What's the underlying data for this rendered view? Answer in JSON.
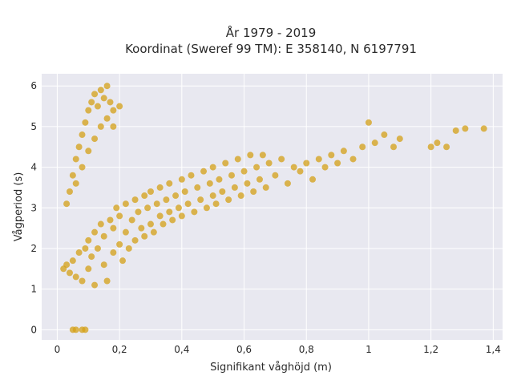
{
  "chart_data": {
    "type": "scatter",
    "title_line1": "År 1979 - 2019",
    "title_line2": "Koordinat (Sweref 99 TM): E 358140, N 6197791",
    "xlabel": "Signifikant våghöjd (m)",
    "ylabel": "Vågperiod (s)",
    "xlim": [
      -0.05,
      1.43
    ],
    "ylim": [
      -0.25,
      6.3
    ],
    "x_ticks": [
      0,
      0.2,
      0.4,
      0.6,
      0.8,
      1,
      1.2,
      1.4
    ],
    "x_tick_labels": [
      "0",
      "0,2",
      "0,4",
      "0,6",
      "0,8",
      "1",
      "1,2",
      "1,4"
    ],
    "y_ticks": [
      0,
      1,
      2,
      3,
      4,
      5,
      6
    ],
    "y_tick_labels": [
      "0",
      "1",
      "2",
      "3",
      "4",
      "5",
      "6"
    ],
    "grid": true,
    "colors": {
      "marker": "#D4A017",
      "plot_bg": "#E8E8F0",
      "grid": "#ffffff"
    },
    "series": [
      {
        "values_xy": [
          [
            0.02,
            1.5
          ],
          [
            0.03,
            1.6
          ],
          [
            0.04,
            1.4
          ],
          [
            0.05,
            1.7
          ],
          [
            0.06,
            1.3
          ],
          [
            0.07,
            1.9
          ],
          [
            0.08,
            1.2
          ],
          [
            0.09,
            2.0
          ],
          [
            0.1,
            1.5
          ],
          [
            0.1,
            2.2
          ],
          [
            0.11,
            1.8
          ],
          [
            0.12,
            2.4
          ],
          [
            0.12,
            1.1
          ],
          [
            0.13,
            2.0
          ],
          [
            0.14,
            2.6
          ],
          [
            0.15,
            1.6
          ],
          [
            0.15,
            2.3
          ],
          [
            0.16,
            1.2
          ],
          [
            0.17,
            2.7
          ],
          [
            0.18,
            1.9
          ],
          [
            0.18,
            2.5
          ],
          [
            0.19,
            3.0
          ],
          [
            0.2,
            2.1
          ],
          [
            0.2,
            2.8
          ],
          [
            0.21,
            1.7
          ],
          [
            0.22,
            2.4
          ],
          [
            0.22,
            3.1
          ],
          [
            0.23,
            2.0
          ],
          [
            0.24,
            2.7
          ],
          [
            0.25,
            3.2
          ],
          [
            0.25,
            2.2
          ],
          [
            0.26,
            2.9
          ],
          [
            0.27,
            2.5
          ],
          [
            0.28,
            3.3
          ],
          [
            0.28,
            2.3
          ],
          [
            0.29,
            3.0
          ],
          [
            0.3,
            2.6
          ],
          [
            0.3,
            3.4
          ],
          [
            0.31,
            2.4
          ],
          [
            0.32,
            3.1
          ],
          [
            0.33,
            2.8
          ],
          [
            0.33,
            3.5
          ],
          [
            0.34,
            2.6
          ],
          [
            0.35,
            3.2
          ],
          [
            0.36,
            2.9
          ],
          [
            0.36,
            3.6
          ],
          [
            0.37,
            2.7
          ],
          [
            0.38,
            3.3
          ],
          [
            0.39,
            3.0
          ],
          [
            0.4,
            3.7
          ],
          [
            0.4,
            2.8
          ],
          [
            0.41,
            3.4
          ],
          [
            0.42,
            3.1
          ],
          [
            0.43,
            3.8
          ],
          [
            0.44,
            2.9
          ],
          [
            0.45,
            3.5
          ],
          [
            0.46,
            3.2
          ],
          [
            0.47,
            3.9
          ],
          [
            0.48,
            3.0
          ],
          [
            0.49,
            3.6
          ],
          [
            0.5,
            3.3
          ],
          [
            0.5,
            4.0
          ],
          [
            0.51,
            3.1
          ],
          [
            0.52,
            3.7
          ],
          [
            0.53,
            3.4
          ],
          [
            0.54,
            4.1
          ],
          [
            0.55,
            3.2
          ],
          [
            0.56,
            3.8
          ],
          [
            0.57,
            3.5
          ],
          [
            0.58,
            4.2
          ],
          [
            0.59,
            3.3
          ],
          [
            0.6,
            3.9
          ],
          [
            0.61,
            3.6
          ],
          [
            0.62,
            4.3
          ],
          [
            0.63,
            3.4
          ],
          [
            0.64,
            4.0
          ],
          [
            0.65,
            3.7
          ],
          [
            0.66,
            4.3
          ],
          [
            0.67,
            3.5
          ],
          [
            0.68,
            4.1
          ],
          [
            0.7,
            3.8
          ],
          [
            0.72,
            4.2
          ],
          [
            0.74,
            3.6
          ],
          [
            0.76,
            4.0
          ],
          [
            0.78,
            3.9
          ],
          [
            0.8,
            4.1
          ],
          [
            0.82,
            3.7
          ],
          [
            0.84,
            4.2
          ],
          [
            0.86,
            4.0
          ],
          [
            0.88,
            4.3
          ],
          [
            0.9,
            4.1
          ],
          [
            0.92,
            4.4
          ],
          [
            0.95,
            4.2
          ],
          [
            0.98,
            4.5
          ],
          [
            1.0,
            5.1
          ],
          [
            1.02,
            4.6
          ],
          [
            1.05,
            4.8
          ],
          [
            1.08,
            4.5
          ],
          [
            1.1,
            4.7
          ],
          [
            1.2,
            4.5
          ],
          [
            1.22,
            4.6
          ],
          [
            1.25,
            4.5
          ],
          [
            1.28,
            4.9
          ],
          [
            1.31,
            4.95
          ],
          [
            1.37,
            4.95
          ],
          [
            0.03,
            3.1
          ],
          [
            0.04,
            3.4
          ],
          [
            0.05,
            3.8
          ],
          [
            0.06,
            4.2
          ],
          [
            0.07,
            4.5
          ],
          [
            0.08,
            4.8
          ],
          [
            0.09,
            5.1
          ],
          [
            0.1,
            5.4
          ],
          [
            0.11,
            5.6
          ],
          [
            0.12,
            5.8
          ],
          [
            0.13,
            5.5
          ],
          [
            0.14,
            5.9
          ],
          [
            0.15,
            5.7
          ],
          [
            0.16,
            6.0
          ],
          [
            0.17,
            5.6
          ],
          [
            0.18,
            5.4
          ],
          [
            0.2,
            5.5
          ],
          [
            0.06,
            3.6
          ],
          [
            0.08,
            4.0
          ],
          [
            0.1,
            4.4
          ],
          [
            0.12,
            4.7
          ],
          [
            0.14,
            5.0
          ],
          [
            0.16,
            5.2
          ],
          [
            0.18,
            5.0
          ],
          [
            0.05,
            0.0
          ],
          [
            0.06,
            0.0
          ],
          [
            0.08,
            0.0
          ],
          [
            0.09,
            0.0
          ]
        ]
      }
    ]
  }
}
